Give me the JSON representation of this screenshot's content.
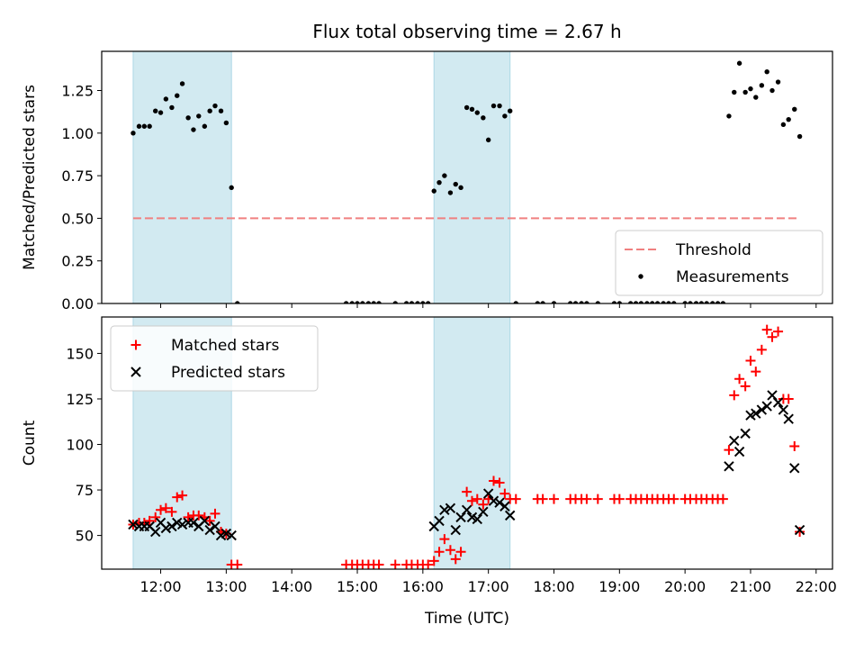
{
  "figure": {
    "title": "Flux total observing time = 2.67 h",
    "xlabel": "Time (UTC)",
    "x_ticks": [
      "12:00",
      "13:00",
      "14:00",
      "15:00",
      "16:00",
      "17:00",
      "18:00",
      "19:00",
      "20:00",
      "21:00",
      "22:00"
    ],
    "x_tick_hours": [
      12,
      13,
      14,
      15,
      16,
      17,
      18,
      19,
      20,
      21,
      22
    ],
    "xlim_hours": [
      11.1,
      22.25
    ],
    "shaded_intervals_hours": [
      [
        11.58,
        13.08
      ],
      [
        16.17,
        17.33
      ]
    ],
    "shade_color": "#add8e6"
  },
  "chart_data": [
    {
      "type": "scatter",
      "ylabel": "Matched/Predicted stars",
      "ylim": [
        0,
        1.48
      ],
      "y_ticks": [
        0.0,
        0.25,
        0.5,
        0.75,
        1.0,
        1.25
      ],
      "y_tick_labels": [
        "0.00",
        "0.25",
        "0.50",
        "0.75",
        "1.00",
        "1.25"
      ],
      "legend_position": "bottom-right",
      "threshold": {
        "name": "Threshold",
        "value": 0.5,
        "x_range_hours": [
          11.58,
          21.75
        ],
        "color": "#f08080"
      },
      "series": [
        {
          "name": "Measurements",
          "color": "#000000",
          "marker": "dot",
          "x": [
            11.58,
            11.67,
            11.75,
            11.83,
            11.92,
            12.0,
            12.08,
            12.17,
            12.25,
            12.33,
            12.42,
            12.5,
            12.58,
            12.67,
            12.75,
            12.83,
            12.92,
            13.0,
            13.08,
            13.17,
            14.83,
            14.92,
            15.0,
            15.08,
            15.17,
            15.25,
            15.33,
            15.58,
            15.75,
            15.83,
            15.92,
            16.0,
            16.08,
            16.17,
            16.25,
            16.33,
            16.42,
            16.5,
            16.58,
            16.67,
            16.75,
            16.83,
            16.92,
            17.0,
            17.08,
            17.17,
            17.25,
            17.33,
            17.42,
            17.75,
            17.83,
            18.0,
            18.25,
            18.33,
            18.42,
            18.5,
            18.67,
            18.92,
            19.0,
            19.17,
            19.25,
            19.33,
            19.42,
            19.5,
            19.58,
            19.67,
            19.75,
            19.83,
            20.0,
            20.08,
            20.17,
            20.25,
            20.33,
            20.42,
            20.5,
            20.58,
            20.67,
            20.75,
            20.83,
            20.92,
            21.0,
            21.08,
            21.17,
            21.25,
            21.33,
            21.42,
            21.5,
            21.58,
            21.67,
            21.75
          ],
          "y": [
            1.0,
            1.04,
            1.04,
            1.04,
            1.13,
            1.12,
            1.2,
            1.15,
            1.22,
            1.29,
            1.09,
            1.02,
            1.1,
            1.04,
            1.13,
            1.16,
            1.13,
            1.06,
            0.68,
            0.0,
            0.0,
            0.0,
            0.0,
            0.0,
            0.0,
            0.0,
            0.0,
            0.0,
            0.0,
            0.0,
            0.0,
            0.0,
            0.0,
            0.66,
            0.71,
            0.75,
            0.65,
            0.7,
            0.68,
            1.15,
            1.14,
            1.12,
            1.09,
            0.96,
            1.16,
            1.16,
            1.1,
            1.13,
            0.0,
            0.0,
            0.0,
            0.0,
            0.0,
            0.0,
            0.0,
            0.0,
            0.0,
            0.0,
            0.0,
            0.0,
            0.0,
            0.0,
            0.0,
            0.0,
            0.0,
            0.0,
            0.0,
            0.0,
            0.0,
            0.0,
            0.0,
            0.0,
            0.0,
            0.0,
            0.0,
            0.0,
            1.1,
            1.24,
            1.41,
            1.24,
            1.26,
            1.21,
            1.28,
            1.36,
            1.25,
            1.3,
            1.05,
            1.08,
            1.14,
            0.98
          ]
        }
      ]
    },
    {
      "type": "scatter",
      "ylabel": "Count",
      "ylim": [
        31.5,
        170
      ],
      "y_ticks": [
        50,
        75,
        100,
        125,
        150
      ],
      "legend_position": "top-left",
      "series": [
        {
          "name": "Matched stars",
          "color": "#ff0000",
          "marker": "plus",
          "x": [
            11.58,
            11.67,
            11.75,
            11.83,
            11.92,
            12.0,
            12.08,
            12.17,
            12.25,
            12.33,
            12.42,
            12.5,
            12.58,
            12.67,
            12.75,
            12.83,
            12.92,
            13.0,
            13.08,
            13.17,
            14.83,
            14.92,
            15.0,
            15.08,
            15.17,
            15.25,
            15.33,
            15.58,
            15.75,
            15.83,
            15.92,
            16.0,
            16.08,
            16.17,
            16.25,
            16.33,
            16.42,
            16.5,
            16.58,
            16.67,
            16.75,
            16.83,
            16.92,
            17.0,
            17.08,
            17.17,
            17.25,
            17.33,
            17.42,
            17.75,
            17.83,
            18.0,
            18.25,
            18.33,
            18.42,
            18.5,
            18.67,
            18.92,
            19.0,
            19.17,
            19.25,
            19.33,
            19.42,
            19.5,
            19.58,
            19.67,
            19.75,
            19.83,
            20.0,
            20.08,
            20.17,
            20.25,
            20.33,
            20.42,
            20.5,
            20.58,
            20.67,
            20.75,
            20.83,
            20.92,
            21.0,
            21.08,
            21.17,
            21.25,
            21.33,
            21.42,
            21.5,
            21.58,
            21.67,
            21.75
          ],
          "y": [
            56,
            57,
            57,
            58,
            60,
            64,
            65,
            63,
            71,
            72,
            60,
            61,
            61,
            60,
            58,
            62,
            52,
            51,
            34,
            34,
            34,
            34,
            34,
            34,
            34,
            34,
            34,
            34,
            34,
            34,
            34,
            34,
            34,
            36,
            41,
            48,
            42,
            37,
            41,
            74,
            69,
            70,
            67,
            70,
            80,
            79,
            73,
            70,
            70,
            70,
            70,
            70,
            70,
            70,
            70,
            70,
            70,
            70,
            70,
            70,
            70,
            70,
            70,
            70,
            70,
            70,
            70,
            70,
            70,
            70,
            70,
            70,
            70,
            70,
            70,
            70,
            97,
            127,
            136,
            132,
            146,
            140,
            152,
            163,
            159,
            162,
            125,
            125,
            99,
            52
          ]
        },
        {
          "name": "Predicted stars",
          "color": "#000000",
          "marker": "x",
          "x": [
            11.58,
            11.67,
            11.75,
            11.83,
            11.92,
            12.0,
            12.08,
            12.17,
            12.25,
            12.33,
            12.42,
            12.5,
            12.58,
            12.67,
            12.75,
            12.83,
            12.92,
            13.0,
            13.08,
            16.17,
            16.25,
            16.33,
            16.42,
            16.5,
            16.58,
            16.67,
            16.75,
            16.83,
            16.92,
            17.0,
            17.08,
            17.17,
            17.25,
            17.33,
            20.67,
            20.75,
            20.83,
            20.92,
            21.0,
            21.08,
            21.17,
            21.25,
            21.33,
            21.42,
            21.5,
            21.58,
            21.67,
            21.75
          ],
          "y": [
            56,
            55,
            55,
            55,
            52,
            57,
            54,
            55,
            57,
            56,
            57,
            57,
            55,
            58,
            53,
            55,
            50,
            51,
            50,
            55,
            58,
            64,
            65,
            53,
            60,
            64,
            60,
            59,
            63,
            73,
            69,
            68,
            66,
            61,
            88,
            102,
            96,
            106,
            116,
            117,
            119,
            121,
            127,
            123,
            119,
            114,
            87,
            53
          ]
        }
      ]
    }
  ]
}
